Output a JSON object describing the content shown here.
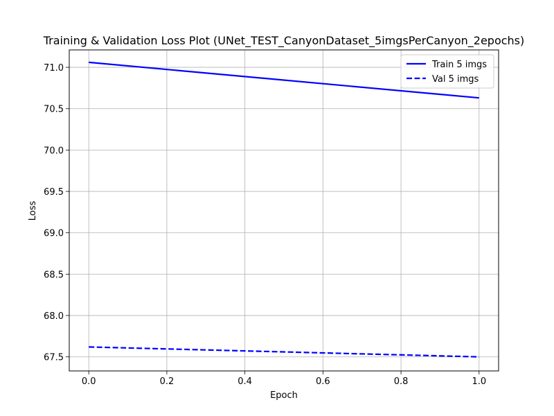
{
  "chart_data": {
    "type": "line",
    "title": "Training & Validation Loss Plot (UNet_TEST_CanyonDataset_5imgsPerCanyon_2epochs)",
    "xlabel": "Epoch",
    "ylabel": "Loss",
    "xlim": [
      -0.05,
      1.05
    ],
    "ylim": [
      67.33,
      71.21
    ],
    "x_ticks": [
      0.0,
      0.2,
      0.4,
      0.6,
      0.8,
      1.0
    ],
    "x_tick_labels": [
      "0.0",
      "0.2",
      "0.4",
      "0.6",
      "0.8",
      "1.0"
    ],
    "y_ticks": [
      67.5,
      68.0,
      68.5,
      69.0,
      69.5,
      70.0,
      70.5,
      71.0
    ],
    "y_tick_labels": [
      "67.5",
      "68.0",
      "68.5",
      "69.0",
      "69.5",
      "70.0",
      "70.5",
      "71.0"
    ],
    "grid": true,
    "legend_position": "upper-right",
    "x": [
      0,
      1
    ],
    "series": [
      {
        "name": "Train 5 imgs",
        "values": [
          71.06,
          70.63
        ],
        "color": "#0000ff",
        "dash": "solid"
      },
      {
        "name": "Val 5 imgs",
        "values": [
          67.62,
          67.5
        ],
        "color": "#0000ff",
        "dash": "dashed"
      }
    ]
  }
}
